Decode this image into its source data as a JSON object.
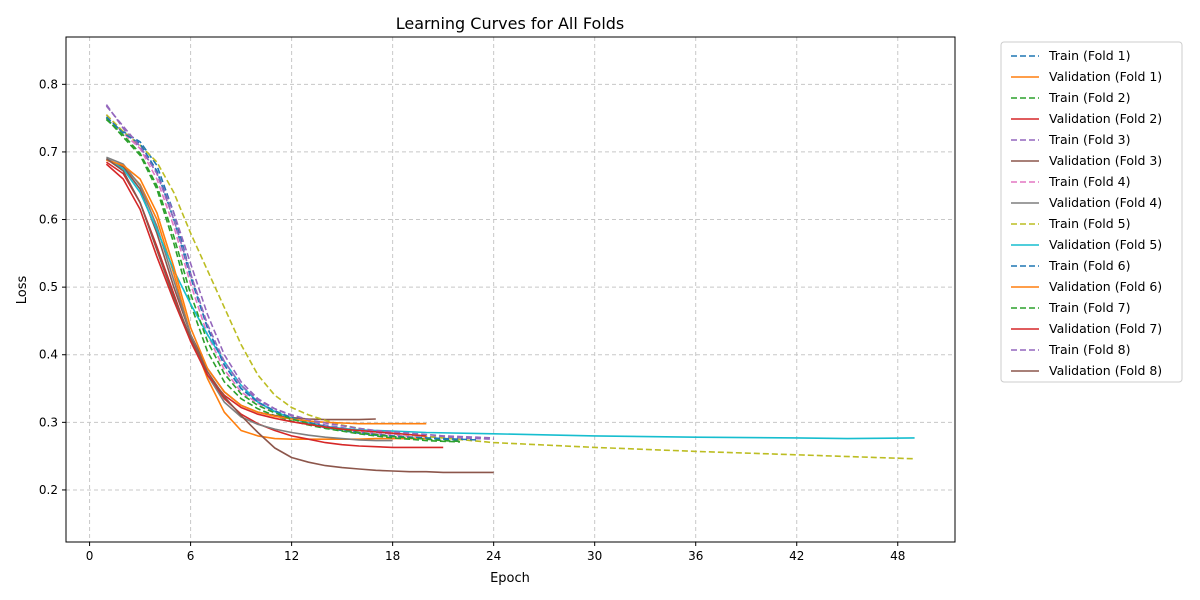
{
  "chart_data": {
    "type": "line",
    "title": "Learning Curves for All Folds",
    "xlabel": "Epoch",
    "ylabel": "Loss",
    "xlim": [
      -1.4,
      51.4
    ],
    "ylim": [
      0.123,
      0.87
    ],
    "xticks": [
      0,
      6,
      12,
      18,
      24,
      30,
      36,
      42,
      48
    ],
    "yticks": [
      0.2,
      0.3,
      0.4,
      0.5,
      0.6,
      0.7,
      0.8
    ],
    "grid": true,
    "legend_position": "outside-right",
    "series": [
      {
        "name": "Train (Fold 1)",
        "color": "#1f77b4",
        "dash": true,
        "x": [
          1,
          2,
          3,
          4,
          5,
          6,
          7,
          8,
          9,
          10,
          11,
          12,
          13,
          14,
          15,
          16,
          17,
          18,
          19,
          20,
          21,
          22
        ],
        "y": [
          0.748,
          0.73,
          0.715,
          0.68,
          0.61,
          0.52,
          0.44,
          0.385,
          0.35,
          0.33,
          0.316,
          0.306,
          0.298,
          0.292,
          0.288,
          0.284,
          0.281,
          0.279,
          0.277,
          0.276,
          0.275,
          0.274
        ]
      },
      {
        "name": "Validation (Fold 1)",
        "color": "#ff7f0e",
        "dash": false,
        "x": [
          1,
          2,
          3,
          4,
          5,
          6,
          7,
          8,
          9,
          10,
          11,
          12,
          13,
          14,
          15,
          16,
          17,
          18,
          19,
          20
        ],
        "y": [
          0.688,
          0.678,
          0.652,
          0.6,
          0.52,
          0.43,
          0.365,
          0.315,
          0.288,
          0.28,
          0.276,
          0.275,
          0.275,
          0.275,
          0.275,
          0.275,
          0.276,
          0.276,
          0.276,
          0.276
        ]
      },
      {
        "name": "Train (Fold 2)",
        "color": "#2ca02c",
        "dash": true,
        "x": [
          1,
          2,
          3,
          4,
          5,
          6,
          7,
          8,
          9,
          10,
          11,
          12,
          13,
          14,
          15,
          16,
          17,
          18,
          19,
          20,
          21,
          22
        ],
        "y": [
          0.75,
          0.722,
          0.695,
          0.645,
          0.565,
          0.475,
          0.405,
          0.36,
          0.335,
          0.32,
          0.31,
          0.302,
          0.296,
          0.291,
          0.287,
          0.283,
          0.28,
          0.277,
          0.275,
          0.273,
          0.272,
          0.271
        ]
      },
      {
        "name": "Validation (Fold 2)",
        "color": "#d62728",
        "dash": false,
        "x": [
          1,
          2,
          3,
          4,
          5,
          6,
          7,
          8,
          9,
          10,
          11,
          12,
          13,
          14,
          15,
          16,
          17,
          18,
          19,
          20,
          21
        ],
        "y": [
          0.685,
          0.668,
          0.625,
          0.56,
          0.49,
          0.42,
          0.37,
          0.335,
          0.312,
          0.298,
          0.288,
          0.28,
          0.275,
          0.27,
          0.267,
          0.265,
          0.264,
          0.263,
          0.263,
          0.263,
          0.263
        ]
      },
      {
        "name": "Train (Fold 3)",
        "color": "#9467bd",
        "dash": true,
        "x": [
          1,
          2,
          3,
          4,
          5,
          6,
          7,
          8,
          9,
          10,
          11,
          12,
          13,
          14,
          15,
          16,
          17,
          18,
          19,
          20,
          21,
          22,
          23,
          24
        ],
        "y": [
          0.77,
          0.735,
          0.705,
          0.67,
          0.61,
          0.535,
          0.46,
          0.4,
          0.36,
          0.335,
          0.32,
          0.31,
          0.302,
          0.296,
          0.292,
          0.288,
          0.285,
          0.283,
          0.281,
          0.279,
          0.278,
          0.277,
          0.276,
          0.275
        ]
      },
      {
        "name": "Validation (Fold 3)",
        "color": "#8c564b",
        "dash": false,
        "x": [
          1,
          2,
          3,
          4,
          5,
          6,
          7,
          8,
          9,
          10,
          11,
          12,
          13,
          14,
          15,
          16,
          17
        ],
        "y": [
          0.69,
          0.678,
          0.645,
          0.58,
          0.5,
          0.43,
          0.38,
          0.345,
          0.325,
          0.315,
          0.31,
          0.307,
          0.305,
          0.304,
          0.304,
          0.304,
          0.305
        ]
      },
      {
        "name": "Train (Fold 4)",
        "color": "#e377c2",
        "dash": true,
        "x": [
          1,
          2,
          3,
          4,
          5,
          6,
          7,
          8,
          9,
          10,
          11,
          12,
          13,
          14,
          15,
          16,
          17,
          18,
          19,
          20
        ],
        "y": [
          0.755,
          0.728,
          0.705,
          0.66,
          0.59,
          0.505,
          0.43,
          0.378,
          0.345,
          0.328,
          0.316,
          0.306,
          0.299,
          0.294,
          0.29,
          0.286,
          0.283,
          0.281,
          0.279,
          0.278
        ]
      },
      {
        "name": "Validation (Fold 4)",
        "color": "#7f7f7f",
        "dash": false,
        "x": [
          1,
          2,
          3,
          4,
          5,
          6,
          7,
          8,
          9,
          10,
          11,
          12,
          13,
          14,
          15,
          16,
          17,
          18
        ],
        "y": [
          0.692,
          0.682,
          0.65,
          0.59,
          0.51,
          0.43,
          0.37,
          0.33,
          0.308,
          0.297,
          0.29,
          0.285,
          0.281,
          0.278,
          0.276,
          0.274,
          0.273,
          0.273
        ]
      },
      {
        "name": "Train (Fold 5)",
        "color": "#bcbd22",
        "dash": true,
        "x": [
          1,
          2,
          3,
          4,
          5,
          6,
          7,
          8,
          9,
          10,
          11,
          12,
          13,
          14,
          15,
          16,
          17,
          18,
          20,
          24,
          30,
          36,
          42,
          49
        ],
        "y": [
          0.755,
          0.73,
          0.71,
          0.685,
          0.64,
          0.58,
          0.525,
          0.47,
          0.415,
          0.37,
          0.34,
          0.322,
          0.311,
          0.303,
          0.296,
          0.291,
          0.287,
          0.284,
          0.279,
          0.27,
          0.263,
          0.257,
          0.252,
          0.246
        ]
      },
      {
        "name": "Validation (Fold 5)",
        "color": "#17becf",
        "dash": false,
        "x": [
          1,
          2,
          3,
          4,
          5,
          6,
          7,
          8,
          9,
          10,
          11,
          12,
          13,
          14,
          15,
          16,
          17,
          18,
          20,
          24,
          30,
          36,
          42,
          45,
          49
        ],
        "y": [
          0.69,
          0.675,
          0.64,
          0.585,
          0.525,
          0.475,
          0.43,
          0.39,
          0.355,
          0.33,
          0.316,
          0.306,
          0.299,
          0.294,
          0.291,
          0.289,
          0.288,
          0.287,
          0.285,
          0.283,
          0.28,
          0.278,
          0.277,
          0.276,
          0.277
        ]
      },
      {
        "name": "Train (Fold 6)",
        "color": "#1f77b4",
        "dash": true,
        "x": [
          1,
          2,
          3,
          4,
          5,
          6,
          7,
          8,
          9,
          10,
          11,
          12,
          13,
          14,
          15,
          16,
          17,
          18,
          19,
          20,
          21,
          22,
          23
        ],
        "y": [
          0.752,
          0.728,
          0.712,
          0.672,
          0.6,
          0.515,
          0.44,
          0.385,
          0.35,
          0.33,
          0.317,
          0.307,
          0.3,
          0.294,
          0.289,
          0.285,
          0.282,
          0.28,
          0.278,
          0.277,
          0.276,
          0.275,
          0.274
        ]
      },
      {
        "name": "Validation (Fold 6)",
        "color": "#ff7f0e",
        "dash": false,
        "x": [
          1,
          2,
          3,
          4,
          5,
          6,
          7,
          8,
          9,
          10,
          11,
          12,
          13,
          14,
          15,
          16,
          17,
          18,
          19,
          20
        ],
        "y": [
          0.688,
          0.68,
          0.66,
          0.61,
          0.53,
          0.44,
          0.38,
          0.345,
          0.325,
          0.315,
          0.309,
          0.305,
          0.302,
          0.3,
          0.299,
          0.298,
          0.298,
          0.298,
          0.298,
          0.298
        ]
      },
      {
        "name": "Train (Fold 7)",
        "color": "#2ca02c",
        "dash": true,
        "x": [
          1,
          2,
          3,
          4,
          5,
          6,
          7,
          8,
          9,
          10,
          11,
          12,
          13,
          14,
          15,
          16,
          17,
          18,
          19,
          20,
          21,
          22
        ],
        "y": [
          0.748,
          0.725,
          0.698,
          0.65,
          0.575,
          0.49,
          0.42,
          0.372,
          0.342,
          0.325,
          0.314,
          0.305,
          0.298,
          0.293,
          0.289,
          0.285,
          0.282,
          0.279,
          0.277,
          0.275,
          0.273,
          0.272
        ]
      },
      {
        "name": "Validation (Fold 7)",
        "color": "#d62728",
        "dash": false,
        "x": [
          1,
          2,
          3,
          4,
          5,
          6,
          7,
          8,
          9,
          10,
          11,
          12,
          13,
          14,
          15,
          16,
          17,
          18,
          19,
          20
        ],
        "y": [
          0.682,
          0.66,
          0.615,
          0.545,
          0.48,
          0.42,
          0.37,
          0.34,
          0.322,
          0.312,
          0.306,
          0.301,
          0.297,
          0.293,
          0.29,
          0.288,
          0.286,
          0.284,
          0.282,
          0.28
        ]
      },
      {
        "name": "Train (Fold 8)",
        "color": "#9467bd",
        "dash": true,
        "x": [
          1,
          2,
          3,
          4,
          5,
          6,
          7,
          8,
          9,
          10,
          11,
          12,
          13,
          14,
          15,
          16,
          17,
          18,
          19,
          20,
          21,
          22,
          23,
          24
        ],
        "y": [
          0.768,
          0.738,
          0.708,
          0.668,
          0.6,
          0.52,
          0.445,
          0.39,
          0.355,
          0.333,
          0.32,
          0.311,
          0.304,
          0.299,
          0.295,
          0.291,
          0.288,
          0.286,
          0.284,
          0.282,
          0.28,
          0.279,
          0.278,
          0.277
        ]
      },
      {
        "name": "Validation (Fold 8)",
        "color": "#8c564b",
        "dash": false,
        "x": [
          1,
          2,
          3,
          4,
          5,
          6,
          7,
          8,
          9,
          10,
          11,
          12,
          13,
          14,
          15,
          16,
          17,
          18,
          19,
          20,
          21,
          22,
          23,
          24
        ],
        "y": [
          0.69,
          0.672,
          0.625,
          0.555,
          0.485,
          0.425,
          0.375,
          0.338,
          0.31,
          0.285,
          0.262,
          0.248,
          0.241,
          0.236,
          0.233,
          0.231,
          0.229,
          0.228,
          0.227,
          0.227,
          0.226,
          0.226,
          0.226,
          0.226
        ]
      }
    ]
  }
}
